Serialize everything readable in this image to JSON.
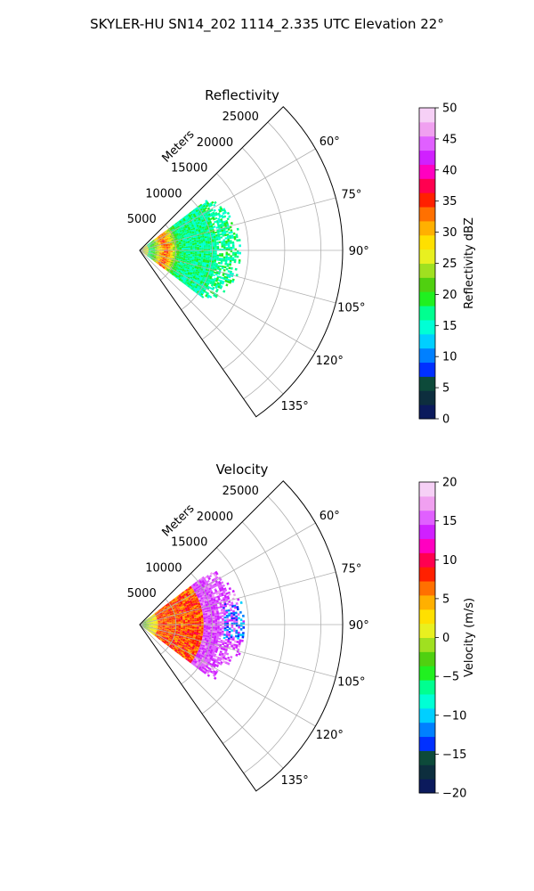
{
  "suptitle": "SKYLER-HU  SN14_202  1114_2.335 UTC Elevation 22°",
  "chart_data": [
    {
      "type": "heatmap",
      "title": "Reflectivity",
      "radial_label": "Meters",
      "r_ticks": [
        "5000",
        "10000",
        "15000",
        "20000",
        "25000"
      ],
      "r_max": 28000,
      "theta_range_deg": [
        45,
        145
      ],
      "theta_ticks": [
        "60°",
        "75°",
        "90°",
        "105°",
        "120°",
        "135°"
      ],
      "grid": true,
      "colorbar": {
        "label": "Reflectivity dBZ",
        "range": [
          0,
          50
        ],
        "ticks": [
          "0",
          "5",
          "10",
          "15",
          "20",
          "25",
          "30",
          "35",
          "40",
          "45",
          "50"
        ],
        "colors": [
          "#0b1a5c",
          "#0d2e3e",
          "#0d4a3a",
          "#0030ff",
          "#0080ff",
          "#00cfff",
          "#00ffd5",
          "#00ff90",
          "#20f020",
          "#50d010",
          "#a0e020",
          "#e8f020",
          "#ffe000",
          "#ffb000",
          "#ff7000",
          "#ff2000",
          "#ff0050",
          "#ff00c0",
          "#d020ff",
          "#e060ff",
          "#f0a0f0",
          "#f6d0f6"
        ]
      },
      "echo": {
        "max_range_m": 14000,
        "mean_value": 17,
        "value_spread": 6,
        "ring_peak_range_m": 3600,
        "ring_peak_value": 34
      }
    },
    {
      "type": "heatmap",
      "title": "Velocity",
      "radial_label": "Meters",
      "r_ticks": [
        "5000",
        "10000",
        "15000",
        "20000",
        "25000"
      ],
      "r_max": 28000,
      "theta_range_deg": [
        45,
        145
      ],
      "theta_ticks": [
        "60°",
        "75°",
        "90°",
        "105°",
        "120°",
        "135°"
      ],
      "grid": true,
      "colorbar": {
        "label": "Velocity (m/s)",
        "range": [
          -20,
          20
        ],
        "ticks": [
          "−20",
          "−15",
          "−10",
          "−5",
          "0",
          "5",
          "10",
          "15",
          "20"
        ],
        "colors": [
          "#0b1a5c",
          "#0d2e3e",
          "#0d4a3a",
          "#0030ff",
          "#0080ff",
          "#00cfff",
          "#00ffd5",
          "#00ff90",
          "#20f020",
          "#50d010",
          "#a0e020",
          "#e8f020",
          "#ffe000",
          "#ffb000",
          "#ff7000",
          "#ff2000",
          "#ff0050",
          "#ff00c0",
          "#d020ff",
          "#e060ff",
          "#f0a0f0",
          "#f6d0f6"
        ]
      },
      "echo": {
        "max_range_m": 14500,
        "near_value": -4,
        "mid_value": 7,
        "far_value": 15,
        "edge_value": -12
      }
    }
  ]
}
